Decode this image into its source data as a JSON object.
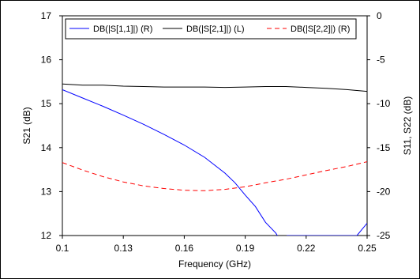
{
  "chart_data": {
    "type": "line",
    "xlabel": "Frequency (GHz)",
    "ylabel_left": "S21 (dB)",
    "ylabel_right": "S11, S22 (dB)",
    "xlim": [
      0.1,
      0.25
    ],
    "ylim_left": [
      12,
      17
    ],
    "ylim_right": [
      -25,
      0
    ],
    "x_ticks": [
      "0.1",
      "0.13",
      "0.16",
      "0.19",
      "0.22",
      "0.25"
    ],
    "y_ticks_left": [
      "12",
      "13",
      "14",
      "15",
      "16",
      "17"
    ],
    "y_ticks_right": [
      "0",
      "-5",
      "-10",
      "-15",
      "-20",
      "-25"
    ],
    "grid": false,
    "legend_position": "top",
    "series": [
      {
        "name": "DB(|S[1,1]|) (R)",
        "axis": "right",
        "color": "#0000ff",
        "dash": "solid",
        "x": [
          0.1,
          0.11,
          0.12,
          0.13,
          0.14,
          0.15,
          0.16,
          0.17,
          0.18,
          0.185,
          0.19,
          0.195,
          0.2,
          0.205,
          0.21,
          0.2106,
          0.245,
          0.25
        ],
        "y": [
          -8.4,
          -9.35,
          -10.3,
          -11.3,
          -12.35,
          -13.5,
          -14.7,
          -16.1,
          -17.9,
          -19.0,
          -20.4,
          -21.7,
          -23.5,
          -24.7,
          -26.5,
          -25.0,
          -25.0,
          -23.6
        ]
      },
      {
        "name": "DB(|S[2,1]|) (L)",
        "axis": "left",
        "color": "#000000",
        "dash": "solid",
        "x": [
          0.1,
          0.11,
          0.12,
          0.13,
          0.14,
          0.15,
          0.16,
          0.17,
          0.18,
          0.19,
          0.2,
          0.21,
          0.22,
          0.23,
          0.24,
          0.25
        ],
        "y": [
          15.45,
          15.42,
          15.42,
          15.4,
          15.39,
          15.38,
          15.38,
          15.38,
          15.37,
          15.38,
          15.39,
          15.39,
          15.37,
          15.35,
          15.32,
          15.28
        ]
      },
      {
        "name": "DB(|S[2,2]|) (R)",
        "axis": "right",
        "color": "#ff0000",
        "dash": "dashed",
        "x": [
          0.1,
          0.11,
          0.12,
          0.13,
          0.14,
          0.15,
          0.16,
          0.17,
          0.18,
          0.19,
          0.2,
          0.21,
          0.22,
          0.23,
          0.24,
          0.25
        ],
        "y": [
          -16.7,
          -17.55,
          -18.3,
          -18.9,
          -19.35,
          -19.65,
          -19.85,
          -19.9,
          -19.75,
          -19.45,
          -19.0,
          -18.6,
          -18.1,
          -17.6,
          -17.15,
          -16.6
        ]
      }
    ]
  }
}
